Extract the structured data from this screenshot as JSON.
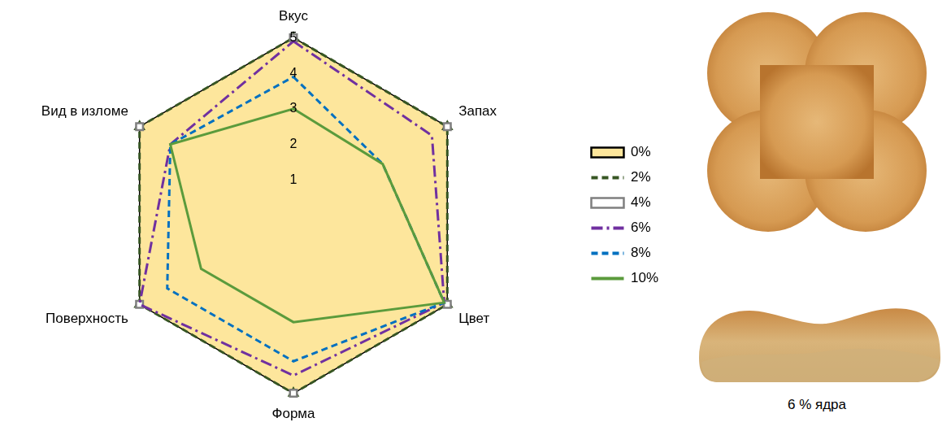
{
  "chart_data": {
    "type": "radar",
    "categories": [
      "Вкус",
      "Запах",
      "Цвет",
      "Форма",
      "Поверхность",
      "Вид в изломе"
    ],
    "ylim": [
      0,
      5
    ],
    "yticks": [
      0,
      1,
      2,
      3,
      4,
      5
    ],
    "grid": true,
    "legend": "right",
    "series": [
      {
        "name": "0%",
        "type": "area",
        "color": "#fde69c",
        "line_style": "solid",
        "values": [
          5,
          5,
          5,
          5,
          5,
          5
        ]
      },
      {
        "name": "2%",
        "color": "#375623",
        "line_style": "dashed",
        "marker": "triangle",
        "values": [
          5,
          5,
          5,
          5,
          5,
          5
        ]
      },
      {
        "name": "4%",
        "color": "#7f7f7f",
        "line_style": "none",
        "marker": "square",
        "values": [
          5,
          5,
          5,
          5,
          5,
          5
        ]
      },
      {
        "name": "6%",
        "color": "#7030a0",
        "line_style": "dashdot",
        "values": [
          4.9,
          4.5,
          4.9,
          4.5,
          5,
          4.0
        ]
      },
      {
        "name": "8%",
        "color": "#0070c0",
        "line_style": "dashed",
        "values": [
          3.9,
          2.9,
          4.9,
          4.1,
          4.1,
          4.0
        ]
      },
      {
        "name": "10%",
        "color": "#5b9b3c",
        "line_style": "solid",
        "values": [
          3.0,
          2.9,
          4.9,
          3.0,
          3.0,
          4.0
        ]
      }
    ]
  },
  "image": {
    "caption": "6 % ядра"
  }
}
